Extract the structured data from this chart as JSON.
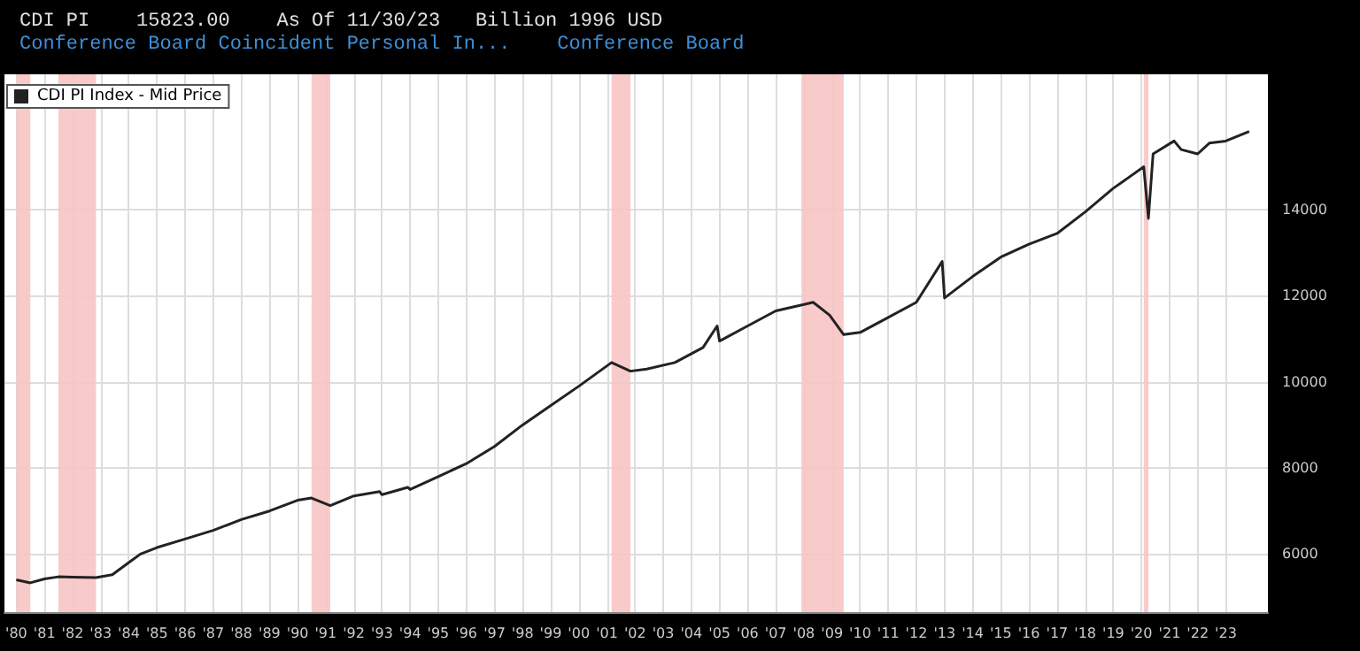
{
  "chart_data": {
    "type": "line",
    "title": "CDI PI    15823.00    As Of 11/30/23   Billion 1996 USD",
    "subtitle": "Conference Board Coincident Personal In...    Conference Board",
    "x": [
      "1980-01",
      "1980-07",
      "1981-01",
      "1981-07",
      "1982-01",
      "1982-11",
      "1983-06",
      "1984-01",
      "1984-06",
      "1985-01",
      "1986-01",
      "1987-01",
      "1988-01",
      "1989-01",
      "1990-01",
      "1990-07",
      "1991-03",
      "1992-01",
      "1992-12",
      "1993-01",
      "1993-12",
      "1994-01",
      "1995-01",
      "1996-01",
      "1997-01",
      "1998-01",
      "1999-01",
      "2000-01",
      "2001-03",
      "2001-11",
      "2002-06",
      "2003-06",
      "2004-06",
      "2004-12",
      "2005-01",
      "2006-01",
      "2007-01",
      "2008-01",
      "2008-05",
      "2008-12",
      "2009-06",
      "2010-01",
      "2011-01",
      "2012-01",
      "2012-12",
      "2013-01",
      "2014-01",
      "2015-01",
      "2016-01",
      "2017-01",
      "2018-01",
      "2019-01",
      "2020-02",
      "2020-04",
      "2020-06",
      "2021-03",
      "2021-06",
      "2022-01",
      "2022-06",
      "2023-01",
      "2023-11"
    ],
    "series": [
      {
        "name": "CDI PI Index - Mid Price",
        "color": "#222222",
        "values": [
          5400,
          5330,
          5420,
          5470,
          5460,
          5450,
          5520,
          5800,
          6000,
          6150,
          6350,
          6550,
          6800,
          7000,
          7250,
          7300,
          7125,
          7350,
          7450,
          7380,
          7550,
          7500,
          7800,
          8100,
          8500,
          9000,
          9450,
          9900,
          10450,
          10250,
          10300,
          10450,
          10800,
          11300,
          10950,
          11300,
          11650,
          11800,
          11850,
          11550,
          11100,
          11150,
          11500,
          11850,
          12800,
          11950,
          12450,
          12900,
          13200,
          13450,
          13950,
          14500,
          15000,
          13800,
          15300,
          15600,
          15400,
          15300,
          15550,
          15600,
          15823
        ]
      }
    ],
    "xlim": [
      "1979-08",
      "2024-07"
    ],
    "xticks": [
      {
        "value": "1980",
        "label": "'80"
      },
      {
        "value": "1981",
        "label": "'81"
      },
      {
        "value": "1982",
        "label": "'82"
      },
      {
        "value": "1983",
        "label": "'83"
      },
      {
        "value": "1984",
        "label": "'84"
      },
      {
        "value": "1985",
        "label": "'85"
      },
      {
        "value": "1986",
        "label": "'86"
      },
      {
        "value": "1987",
        "label": "'87"
      },
      {
        "value": "1988",
        "label": "'88"
      },
      {
        "value": "1989",
        "label": "'89"
      },
      {
        "value": "1990",
        "label": "'90"
      },
      {
        "value": "1991",
        "label": "'91"
      },
      {
        "value": "1992",
        "label": "'92"
      },
      {
        "value": "1993",
        "label": "'93"
      },
      {
        "value": "1994",
        "label": "'94"
      },
      {
        "value": "1995",
        "label": "'95"
      },
      {
        "value": "1996",
        "label": "'96"
      },
      {
        "value": "1997",
        "label": "'97"
      },
      {
        "value": "1998",
        "label": "'98"
      },
      {
        "value": "1999",
        "label": "'99"
      },
      {
        "value": "2000",
        "label": "'00"
      },
      {
        "value": "2001",
        "label": "'01"
      },
      {
        "value": "2002",
        "label": "'02"
      },
      {
        "value": "2003",
        "label": "'03"
      },
      {
        "value": "2004",
        "label": "'04"
      },
      {
        "value": "2005",
        "label": "'05"
      },
      {
        "value": "2006",
        "label": "'06"
      },
      {
        "value": "2007",
        "label": "'07"
      },
      {
        "value": "2008",
        "label": "'08"
      },
      {
        "value": "2009",
        "label": "'09"
      },
      {
        "value": "2010",
        "label": "'10"
      },
      {
        "value": "2011",
        "label": "'11"
      },
      {
        "value": "2012",
        "label": "'12"
      },
      {
        "value": "2013",
        "label": "'13"
      },
      {
        "value": "2014",
        "label": "'14"
      },
      {
        "value": "2015",
        "label": "'15"
      },
      {
        "value": "2016",
        "label": "'16"
      },
      {
        "value": "2017",
        "label": "'17"
      },
      {
        "value": "2018",
        "label": "'18"
      },
      {
        "value": "2019",
        "label": "'19"
      },
      {
        "value": "2020",
        "label": "'20"
      },
      {
        "value": "2021",
        "label": "'21"
      },
      {
        "value": "2022",
        "label": "'22"
      },
      {
        "value": "2023",
        "label": "'23"
      }
    ],
    "ylim": [
      4650,
      17150
    ],
    "yticks": [
      6000,
      8000,
      10000,
      12000,
      14000
    ],
    "bands": [
      {
        "axis": "x",
        "from": "1980-01",
        "to": "1980-07",
        "color": "#f8c4c4"
      },
      {
        "axis": "x",
        "from": "1981-07",
        "to": "1982-11",
        "color": "#f8c4c4"
      },
      {
        "axis": "x",
        "from": "1990-07",
        "to": "1991-03",
        "color": "#f8c4c4"
      },
      {
        "axis": "x",
        "from": "2001-03",
        "to": "2001-11",
        "color": "#f8c4c4"
      },
      {
        "axis": "x",
        "from": "2007-12",
        "to": "2009-06",
        "color": "#f8c4c4"
      },
      {
        "axis": "x",
        "from": "2020-02",
        "to": "2020-04",
        "color": "#f8c4c4"
      }
    ],
    "grid": true,
    "legend": "top left",
    "marker": "none",
    "line_style": "solid"
  }
}
